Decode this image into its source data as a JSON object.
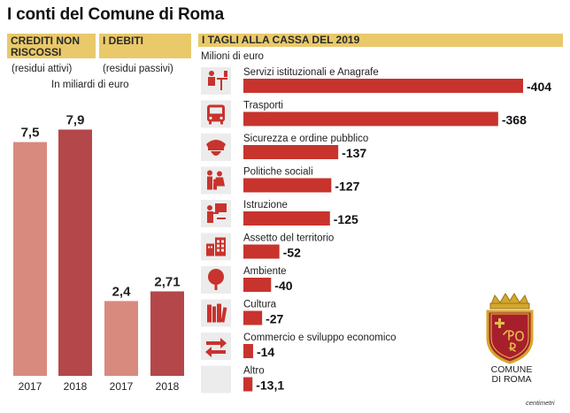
{
  "title": "I conti del Comune di Roma",
  "credits": {
    "header": "CREDITI NON RISCOSSI",
    "subtitle": "(residui attivi)",
    "years": [
      "2017",
      "2018"
    ],
    "values": [
      7.5,
      7.9
    ],
    "value_labels": [
      "7,5",
      "7,9"
    ]
  },
  "debts": {
    "header": "I DEBITI",
    "subtitle": "(residui passivi)",
    "years": [
      "2017",
      "2018"
    ],
    "values": [
      2.4,
      2.71
    ],
    "value_labels": [
      "2,4",
      "2,71"
    ]
  },
  "units_left": "In miliardi di euro",
  "cuts": {
    "header": "I TAGLI ALLA CASSA DEL 2019",
    "units": "Milioni di euro"
  },
  "logo_label": "COMUNE DI ROMA",
  "source_credit": "centimetri",
  "chart_data": [
    {
      "type": "bar",
      "categories": [
        "Crediti non riscossi 2017",
        "Crediti non riscossi 2018",
        "Debiti 2017",
        "Debiti 2018"
      ],
      "values": [
        7.5,
        7.9,
        2.4,
        2.71
      ],
      "xlabel": "",
      "ylabel": "In miliardi di euro",
      "ylim": [
        0,
        8
      ]
    },
    {
      "type": "bar",
      "orientation": "horizontal",
      "title": "I TAGLI ALLA CASSA DEL 2019",
      "ylabel": "Milioni di euro",
      "categories": [
        "Servizi istituzionali e Anagrafe",
        "Trasporti",
        "Sicurezza e ordine pubblico",
        "Politiche sociali",
        "Istruzione",
        "Assetto del territorio",
        "Ambiente",
        "Cultura",
        "Commercio e sviluppo economico",
        "Altro"
      ],
      "values": [
        -404,
        -368,
        -137,
        -127,
        -125,
        -52,
        -40,
        -27,
        -14,
        -13.1
      ],
      "value_labels": [
        "-404",
        "-368",
        "-137",
        "-127",
        "-125",
        "-52",
        "-40",
        "-27",
        "-14",
        "-13,1"
      ],
      "icons": [
        "people-desk-icon",
        "bus-icon",
        "police-cap-icon",
        "family-icon",
        "teacher-icon",
        "buildings-icon",
        "tree-icon",
        "books-icon",
        "arrows-exchange-icon",
        "blank-icon"
      ]
    }
  ],
  "colors": {
    "header_bg": "#e9c96a",
    "credits_bar": "#d98a7e",
    "credits_bar_2018": "#b4474a",
    "cuts_bar": "#c8332d",
    "icon_box": "#ececec",
    "icon_fg": "#c8332d"
  }
}
